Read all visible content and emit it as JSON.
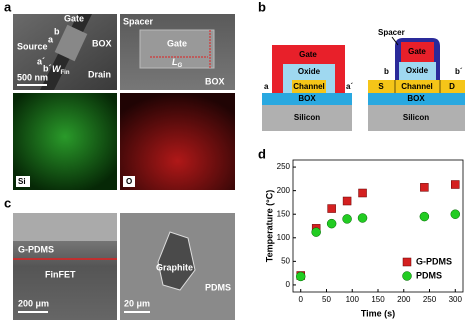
{
  "panel_a": {
    "letter": "a",
    "gate": "Gate",
    "box": "BOX",
    "source": "Source",
    "drain": "Drain",
    "a": "a",
    "b": "b",
    "a_prime": "a´",
    "b_prime": "b´",
    "w_fin": {
      "main": "W",
      "sub": "Fin"
    },
    "scale": "500 nm",
    "spacer": "Spacer",
    "gate2": "Gate",
    "l_g": {
      "main": "L",
      "sub": "G"
    },
    "box2": "BOX",
    "si": "Si",
    "o": "O"
  },
  "panel_b": {
    "letter": "b",
    "left": {
      "gate": "Gate",
      "oxide": "Oxide",
      "channel": "Channel",
      "box": "BOX",
      "silicon": "Silicon",
      "a": "a",
      "a_prime": "a´"
    },
    "right": {
      "spacer": "Spacer",
      "gate": "Gate",
      "oxide": "Oxide",
      "s": "S",
      "channel": "Channel",
      "d": "D",
      "box": "BOX",
      "silicon": "Silicon",
      "b": "b",
      "b_prime": "b´"
    }
  },
  "panel_c": {
    "letter": "c",
    "g_pdms": "G-PDMS",
    "finfet": "FinFET",
    "scale1": "200 μm",
    "graphite": "Graphite",
    "pdms": "PDMS",
    "scale2": "20 μm"
  },
  "panel_d": {
    "letter": "d"
  },
  "chart_data": {
    "type": "scatter",
    "xlabel": "Time (s)",
    "ylabel": "Temperature (°C)",
    "xlim": [
      -15,
      315
    ],
    "xticks": [
      0,
      50,
      100,
      150,
      200,
      250,
      300
    ],
    "ylim": [
      -15,
      265
    ],
    "yticks": [
      0,
      50,
      100,
      150,
      200,
      250
    ],
    "legend": "lower right",
    "series": [
      {
        "name": "G-PDMS",
        "color": "#d42020",
        "marker": "square",
        "x": [
          0,
          30,
          60,
          90,
          120,
          240,
          300
        ],
        "values": [
          20,
          120,
          162,
          178,
          195,
          207,
          213
        ]
      },
      {
        "name": "PDMS",
        "color": "#22cc22",
        "marker": "circle",
        "x": [
          0,
          30,
          60,
          90,
          120,
          240,
          300
        ],
        "values": [
          18,
          112,
          130,
          140,
          142,
          145,
          150
        ]
      }
    ]
  }
}
